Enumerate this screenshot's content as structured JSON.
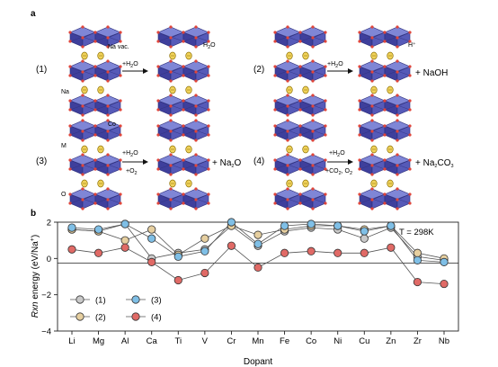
{
  "panel_a": {
    "letter": "a",
    "reactions": [
      {
        "id": "(1)",
        "label_left_top": "Na vac.",
        "label_left_bottom": "Na",
        "reagent_main": "+H",
        "reagent_sub": "2",
        "reagent_tail": "O",
        "reagent2": "",
        "product_label": "H",
        "product_label_sub": "2",
        "product_label_tail": "O",
        "product_side": ""
      },
      {
        "id": "(2)",
        "label_left_top": "",
        "label_left_bottom": "",
        "reagent_main": "+H",
        "reagent_sub": "2",
        "reagent_tail": "O",
        "reagent2": "",
        "product_label": "H⁺",
        "product_label_sub": "",
        "product_label_tail": "",
        "product_side": "+ NaOH"
      },
      {
        "id": "(3)",
        "label_left_top": "Co",
        "label_left_mid": "M",
        "label_left_bottom": "O",
        "reagent_main": "+H",
        "reagent_sub": "2",
        "reagent_tail": "O",
        "reagent2": "+O",
        "reagent2_sub": "2",
        "product_label": "",
        "product_side": "+ Na",
        "product_side_sub": "2",
        "product_side_tail": "O"
      },
      {
        "id": "(4)",
        "label_left_top": "",
        "label_left_bottom": "",
        "reagent_main": "+H",
        "reagent_sub": "2",
        "reagent_tail": "O",
        "reagent2": "+CO",
        "reagent2_sub": "2",
        "reagent2_tail": ", O",
        "reagent2_sub2": "2",
        "product_label": "",
        "product_side": "+ Na",
        "product_side_sub": "2",
        "product_side_tail": "CO",
        "product_side_sub2": "3"
      }
    ],
    "colors": {
      "octahedra_top": "#7f86d6",
      "octahedra_side": "#3e3f9c",
      "oxygen": "#e0453a",
      "sodium": "#d9b41e"
    }
  },
  "panel_b": {
    "letter": "b",
    "annotation": "T = 298K",
    "legend": [
      {
        "label": "(1)",
        "color": "#c9c9c9"
      },
      {
        "label": "(2)",
        "color": "#e6cfa0"
      },
      {
        "label": "(3)",
        "color": "#7fbfe6"
      },
      {
        "label": "(4)",
        "color": "#e06a66"
      }
    ]
  },
  "chart_data": {
    "type": "line",
    "xlabel": "Dopant",
    "ylabel_italic": "Rxn",
    "ylabel_rest": " energy (eV/Na",
    "ylabel_sup": "+",
    "ylabel_close": ")",
    "ylim": [
      -4,
      2
    ],
    "yticks": [
      2,
      0,
      -2,
      -4
    ],
    "grid": false,
    "categories": [
      "Li",
      "Mg",
      "Al",
      "Ca",
      "Ti",
      "V",
      "Cr",
      "Mn",
      "Fe",
      "Co",
      "Ni",
      "Cu",
      "Zn",
      "Zr",
      "Nb"
    ],
    "series": [
      {
        "name": "(1)",
        "color": "#c9c9c9",
        "values": [
          1.6,
          1.5,
          1.9,
          0.0,
          0.3,
          0.5,
          1.8,
          0.7,
          1.5,
          1.7,
          1.6,
          1.1,
          1.7,
          0.1,
          -0.1
        ]
      },
      {
        "name": "(2)",
        "color": "#e6cfa0",
        "values": [
          1.6,
          1.5,
          1.0,
          1.6,
          0.2,
          1.1,
          1.8,
          1.3,
          1.6,
          1.8,
          1.8,
          1.6,
          1.8,
          0.3,
          0.0
        ]
      },
      {
        "name": "(3)",
        "color": "#7fbfe6",
        "values": [
          1.7,
          1.6,
          1.9,
          1.1,
          0.1,
          0.4,
          2.0,
          0.8,
          1.8,
          1.9,
          1.8,
          1.5,
          1.8,
          -0.1,
          -0.2
        ]
      },
      {
        "name": "(4)",
        "color": "#e06a66",
        "values": [
          0.5,
          0.3,
          0.6,
          -0.2,
          -1.2,
          -0.8,
          0.7,
          -0.5,
          0.3,
          0.4,
          0.3,
          0.3,
          0.6,
          -1.3,
          -1.4
        ]
      }
    ]
  }
}
